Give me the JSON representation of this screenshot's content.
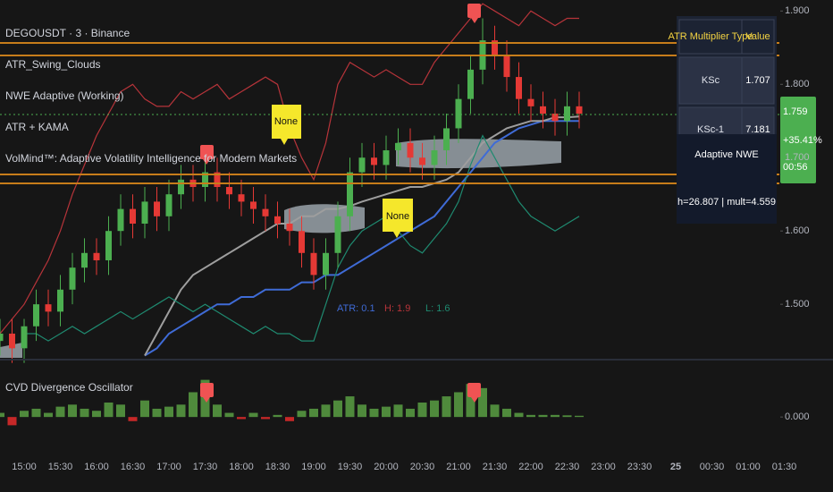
{
  "chart_data": [
    {
      "type": "candlestick",
      "x": [
        "14:40",
        "14:50",
        "15:00",
        "15:10",
        "15:20",
        "15:30",
        "15:40",
        "15:50",
        "16:00",
        "16:10",
        "16:20",
        "16:30",
        "16:40",
        "16:50",
        "17:00",
        "17:10",
        "17:20",
        "17:30",
        "17:40",
        "17:50",
        "18:00",
        "18:10",
        "18:20",
        "18:30",
        "18:40",
        "18:50",
        "19:00",
        "19:10",
        "19:20",
        "19:30",
        "19:40",
        "19:50",
        "20:00",
        "20:10",
        "20:20",
        "20:30",
        "20:40",
        "20:50",
        "21:00",
        "21:10",
        "21:20",
        "21:30",
        "21:40",
        "21:50",
        "22:00",
        "22:10",
        "22:20",
        "22:30",
        "22:40"
      ],
      "open": [
        1.45,
        1.46,
        1.44,
        1.47,
        1.5,
        1.49,
        1.52,
        1.55,
        1.57,
        1.56,
        1.6,
        1.63,
        1.61,
        1.64,
        1.62,
        1.65,
        1.67,
        1.66,
        1.68,
        1.66,
        1.65,
        1.64,
        1.63,
        1.62,
        1.61,
        1.6,
        1.57,
        1.54,
        1.57,
        1.62,
        1.68,
        1.7,
        1.69,
        1.71,
        1.72,
        1.7,
        1.69,
        1.71,
        1.74,
        1.78,
        1.82,
        1.86,
        1.84,
        1.81,
        1.78,
        1.77,
        1.76,
        1.75,
        1.77
      ],
      "high": [
        1.48,
        1.48,
        1.48,
        1.52,
        1.52,
        1.54,
        1.57,
        1.59,
        1.59,
        1.62,
        1.65,
        1.65,
        1.66,
        1.66,
        1.67,
        1.69,
        1.69,
        1.7,
        1.7,
        1.68,
        1.67,
        1.66,
        1.65,
        1.64,
        1.63,
        1.62,
        1.59,
        1.59,
        1.64,
        1.7,
        1.72,
        1.72,
        1.73,
        1.74,
        1.74,
        1.72,
        1.73,
        1.76,
        1.8,
        1.84,
        1.89,
        1.88,
        1.86,
        1.83,
        1.8,
        1.79,
        1.78,
        1.79,
        1.79
      ],
      "low": [
        1.43,
        1.42,
        1.42,
        1.45,
        1.47,
        1.47,
        1.5,
        1.53,
        1.54,
        1.54,
        1.58,
        1.59,
        1.59,
        1.6,
        1.6,
        1.63,
        1.64,
        1.64,
        1.64,
        1.63,
        1.62,
        1.61,
        1.6,
        1.59,
        1.58,
        1.55,
        1.52,
        1.52,
        1.55,
        1.6,
        1.66,
        1.67,
        1.67,
        1.69,
        1.68,
        1.67,
        1.67,
        1.69,
        1.72,
        1.76,
        1.8,
        1.82,
        1.79,
        1.76,
        1.75,
        1.74,
        1.73,
        1.73,
        1.74
      ],
      "close": [
        1.46,
        1.44,
        1.47,
        1.5,
        1.49,
        1.52,
        1.55,
        1.57,
        1.56,
        1.6,
        1.63,
        1.61,
        1.64,
        1.62,
        1.65,
        1.67,
        1.66,
        1.68,
        1.66,
        1.65,
        1.64,
        1.63,
        1.62,
        1.61,
        1.6,
        1.57,
        1.54,
        1.57,
        1.62,
        1.68,
        1.7,
        1.69,
        1.71,
        1.72,
        1.7,
        1.69,
        1.71,
        1.74,
        1.78,
        1.82,
        1.86,
        1.84,
        1.81,
        1.78,
        1.77,
        1.76,
        1.75,
        1.77,
        1.76
      ],
      "up_color": "#4caf50",
      "down_color": "#e53935",
      "series": [
        {
          "color": "#3f6bd6",
          "values": [
            null,
            null,
            null,
            null,
            null,
            null,
            null,
            null,
            null,
            null,
            null,
            null,
            1.43,
            1.44,
            1.46,
            1.47,
            1.48,
            1.49,
            1.5,
            1.5,
            1.51,
            1.51,
            1.52,
            1.52,
            1.52,
            1.53,
            1.53,
            1.54,
            1.54,
            1.55,
            1.56,
            1.57,
            1.58,
            1.59,
            1.6,
            1.61,
            1.62,
            1.64,
            1.66,
            1.68,
            1.7,
            1.72,
            1.73,
            1.74,
            1.745,
            1.75,
            1.75,
            1.75,
            1.75
          ]
        },
        {
          "color": "#9e9e9e",
          "values": [
            null,
            null,
            null,
            null,
            null,
            null,
            null,
            null,
            null,
            null,
            null,
            null,
            1.43,
            1.46,
            1.49,
            1.52,
            1.54,
            1.55,
            1.56,
            1.57,
            1.58,
            1.59,
            1.6,
            1.61,
            1.61,
            1.62,
            1.62,
            1.63,
            1.63,
            1.634,
            1.64,
            1.645,
            1.65,
            1.655,
            1.66,
            1.66,
            1.665,
            1.67,
            1.68,
            1.7,
            1.72,
            1.73,
            1.74,
            1.745,
            1.75,
            1.75,
            1.755,
            1.755,
            1.756
          ]
        },
        {
          "color": "#b7343a",
          "values": [
            1.46,
            1.48,
            1.5,
            1.53,
            1.56,
            1.6,
            1.65,
            1.69,
            1.73,
            1.76,
            1.79,
            1.8,
            1.78,
            1.77,
            1.77,
            1.79,
            1.78,
            1.79,
            1.8,
            1.78,
            1.79,
            1.8,
            1.81,
            1.8,
            1.74,
            1.7,
            1.67,
            1.72,
            1.8,
            1.83,
            1.82,
            1.81,
            1.82,
            1.81,
            1.8,
            1.8,
            1.83,
            1.85,
            1.87,
            1.89,
            1.91,
            1.9,
            1.89,
            1.88,
            1.9,
            1.89,
            1.88,
            1.89,
            1.89
          ]
        },
        {
          "color": "#1f8a70",
          "values": [
            null,
            null,
            1.46,
            1.46,
            1.45,
            1.46,
            1.47,
            1.46,
            1.47,
            1.48,
            1.49,
            1.48,
            1.49,
            1.5,
            1.51,
            1.5,
            1.49,
            1.5,
            1.49,
            1.48,
            1.47,
            1.46,
            1.47,
            1.46,
            1.46,
            1.45,
            1.45,
            1.5,
            1.55,
            1.58,
            1.6,
            1.61,
            1.62,
            1.6,
            1.58,
            1.57,
            1.59,
            1.61,
            1.64,
            1.69,
            1.73,
            1.7,
            1.67,
            1.64,
            1.62,
            1.61,
            1.6,
            1.61,
            1.62
          ]
        }
      ],
      "ylim": [
        1.427,
        1.915
      ],
      "yticks": [
        {
          "value": 1.5,
          "label": "1.500"
        },
        {
          "value": 1.6,
          "label": "1.600"
        },
        {
          "value": 1.7,
          "label": "1.700"
        },
        {
          "value": 1.8,
          "label": "1.800"
        },
        {
          "value": 1.9,
          "label": "1.900"
        }
      ],
      "xticks": [
        "15:00",
        "15:30",
        "16:00",
        "16:30",
        "17:00",
        "17:30",
        "18:00",
        "18:30",
        "19:00",
        "19:30",
        "20:00",
        "20:30",
        "21:00",
        "21:30",
        "22:00",
        "22:30",
        "23:00",
        "23:30",
        "25",
        "00:30",
        "01:00",
        "01:30"
      ]
    },
    {
      "type": "bar",
      "title": "CVD Divergence Oscillator",
      "values": [
        0.1,
        -0.2,
        0.15,
        0.2,
        0.1,
        0.25,
        0.3,
        0.2,
        0.15,
        0.35,
        0.3,
        -0.1,
        0.4,
        0.2,
        0.25,
        0.3,
        0.6,
        0.9,
        0.3,
        0.1,
        -0.05,
        0.1,
        -0.05,
        0.05,
        -0.1,
        0.15,
        0.2,
        0.3,
        0.4,
        0.5,
        0.3,
        0.2,
        0.25,
        0.3,
        0.2,
        0.35,
        0.4,
        0.5,
        0.6,
        0.8,
        0.7,
        0.3,
        0.2,
        0.1,
        0.05,
        0.05,
        0.05,
        0.04,
        0.03
      ],
      "up_color": "#4f8a3c",
      "down_color": "#c62828",
      "ylim": [
        -0.3,
        1.0
      ],
      "yticks": [
        {
          "value": 0,
          "label": "0.000"
        }
      ]
    }
  ],
  "legend": [
    "DEGOUSDT · 3 · Binance",
    "ATR_Swing_Clouds",
    "NWE Adaptive (Working)",
    "ATR + KAMA",
    "VolMind™: Adaptive Volatility Intelligence for Modern Markets"
  ],
  "callouts": [
    "None",
    "None"
  ],
  "atr_readout": {
    "atr": "ATR: 0.1",
    "high": "H: 1.9",
    "low": "L: 1.6"
  },
  "table": {
    "header": [
      "ATR Multiplier Type",
      "Value"
    ],
    "rows": [
      [
        "KSc",
        "1.707"
      ],
      [
        "KSc-1",
        "7.181"
      ]
    ]
  },
  "nwe_panel": {
    "title": "Adaptive NWE",
    "detail": "h=26.807 | mult=4.559"
  },
  "price_tag": [
    "1.759",
    "+35.41%",
    "00:56"
  ]
}
